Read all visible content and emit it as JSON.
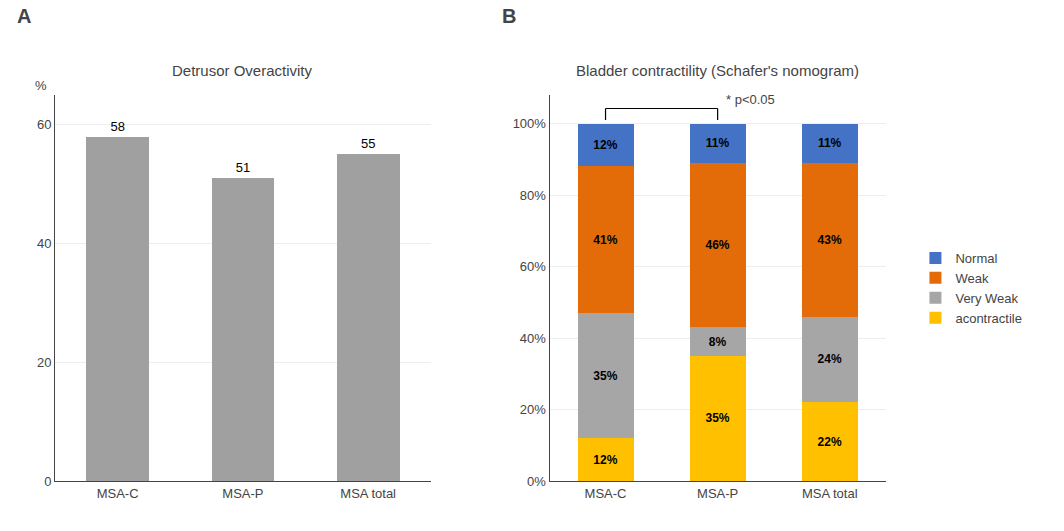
{
  "chart_data": [
    {
      "type": "bar",
      "title": "Detrusor Overactivity",
      "categories": [
        "MSA-C",
        "MSA-P",
        "MSA total"
      ],
      "values": [
        58,
        51,
        55
      ],
      "color": "#a0a0a0",
      "ylabel": "%",
      "ylim": [
        0,
        65
      ],
      "yticks": [
        0,
        20,
        40,
        60
      ],
      "grid": true,
      "data_labels": true,
      "annotations": [
        {
          "text": "A"
        }
      ]
    },
    {
      "type": "bar",
      "stacked": true,
      "title": "Bladder contractility (Schafer's nomogram)",
      "categories": [
        "MSA-C",
        "MSA-P",
        "MSA total"
      ],
      "series": [
        {
          "name": "acontractile",
          "color": "#FFC000",
          "values": [
            12,
            35,
            22
          ],
          "value_labels": [
            "12%",
            "35%",
            "22%"
          ]
        },
        {
          "name": "Very Weak",
          "color": "#A6A6A6",
          "values": [
            35,
            8,
            24
          ],
          "value_labels": [
            "35%",
            "8%",
            "24%"
          ]
        },
        {
          "name": "Weak",
          "color": "#E36C09",
          "values": [
            41,
            46,
            43
          ],
          "value_labels": [
            "41%",
            "46%",
            "43%"
          ]
        },
        {
          "name": "Normal",
          "color": "#4472C4",
          "values": [
            12,
            11,
            11
          ],
          "value_labels": [
            "12%",
            "11%",
            "11%"
          ]
        }
      ],
      "ylim": [
        0,
        108
      ],
      "yticks": [
        {
          "value": 0,
          "label": "0%"
        },
        {
          "value": 20,
          "label": "20%"
        },
        {
          "value": 40,
          "label": "40%"
        },
        {
          "value": 60,
          "label": "60%"
        },
        {
          "value": 80,
          "label": "80%"
        },
        {
          "value": 100,
          "label": "100%"
        }
      ],
      "grid": true,
      "data_labels": true,
      "legend": "right",
      "annotations": [
        {
          "text": "B"
        },
        {
          "text": "* p<0.05",
          "bracket": [
            "MSA-C",
            "MSA-P"
          ]
        }
      ]
    }
  ]
}
